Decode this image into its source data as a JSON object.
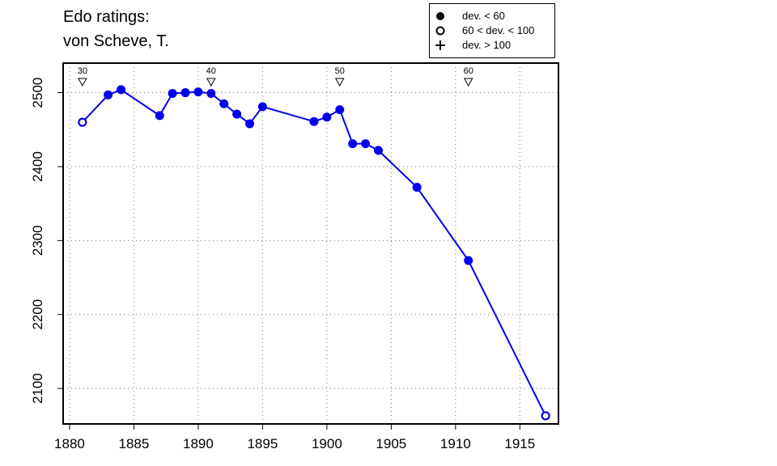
{
  "chart_data": {
    "type": "line",
    "title_lines": [
      "Edo ratings:",
      "von Scheve, T."
    ],
    "xlabel": "",
    "ylabel": "",
    "xlim": [
      1879.5,
      1918
    ],
    "ylim": [
      2052,
      2540
    ],
    "x_ticks": [
      1880,
      1885,
      1890,
      1895,
      1900,
      1905,
      1910,
      1915
    ],
    "y_ticks": [
      2100,
      2200,
      2300,
      2400,
      2500
    ],
    "grid": true,
    "line_color": "#0000ee",
    "legend_position": "top-right",
    "legend": [
      {
        "symbol": "filled-circle",
        "label": "dev. < 60"
      },
      {
        "symbol": "open-circle",
        "label": "60 < dev. < 100"
      },
      {
        "symbol": "plus",
        "label": "dev. > 100"
      }
    ],
    "age_markers": [
      {
        "x": 1881,
        "label": "30"
      },
      {
        "x": 1891,
        "label": "40"
      },
      {
        "x": 1901,
        "label": "50"
      },
      {
        "x": 1911,
        "label": "60"
      }
    ],
    "series": [
      {
        "points": [
          {
            "x": 1881,
            "y": 2460,
            "dev": "mid"
          },
          {
            "x": 1883,
            "y": 2497,
            "dev": "low"
          },
          {
            "x": 1884,
            "y": 2504,
            "dev": "low"
          },
          {
            "x": 1887,
            "y": 2469,
            "dev": "low"
          },
          {
            "x": 1888,
            "y": 2499,
            "dev": "low"
          },
          {
            "x": 1889,
            "y": 2500,
            "dev": "low"
          },
          {
            "x": 1890,
            "y": 2501,
            "dev": "low"
          },
          {
            "x": 1891,
            "y": 2499,
            "dev": "low"
          },
          {
            "x": 1892,
            "y": 2485,
            "dev": "low"
          },
          {
            "x": 1893,
            "y": 2471,
            "dev": "low"
          },
          {
            "x": 1894,
            "y": 2458,
            "dev": "low"
          },
          {
            "x": 1895,
            "y": 2481,
            "dev": "low"
          },
          {
            "x": 1899,
            "y": 2461,
            "dev": "low"
          },
          {
            "x": 1900,
            "y": 2467,
            "dev": "low"
          },
          {
            "x": 1901,
            "y": 2477,
            "dev": "low"
          },
          {
            "x": 1902,
            "y": 2431,
            "dev": "low"
          },
          {
            "x": 1903,
            "y": 2431,
            "dev": "low"
          },
          {
            "x": 1904,
            "y": 2422,
            "dev": "low"
          },
          {
            "x": 1907,
            "y": 2372,
            "dev": "low"
          },
          {
            "x": 1911,
            "y": 2273,
            "dev": "low"
          },
          {
            "x": 1917,
            "y": 2063,
            "dev": "mid"
          }
        ]
      }
    ]
  }
}
